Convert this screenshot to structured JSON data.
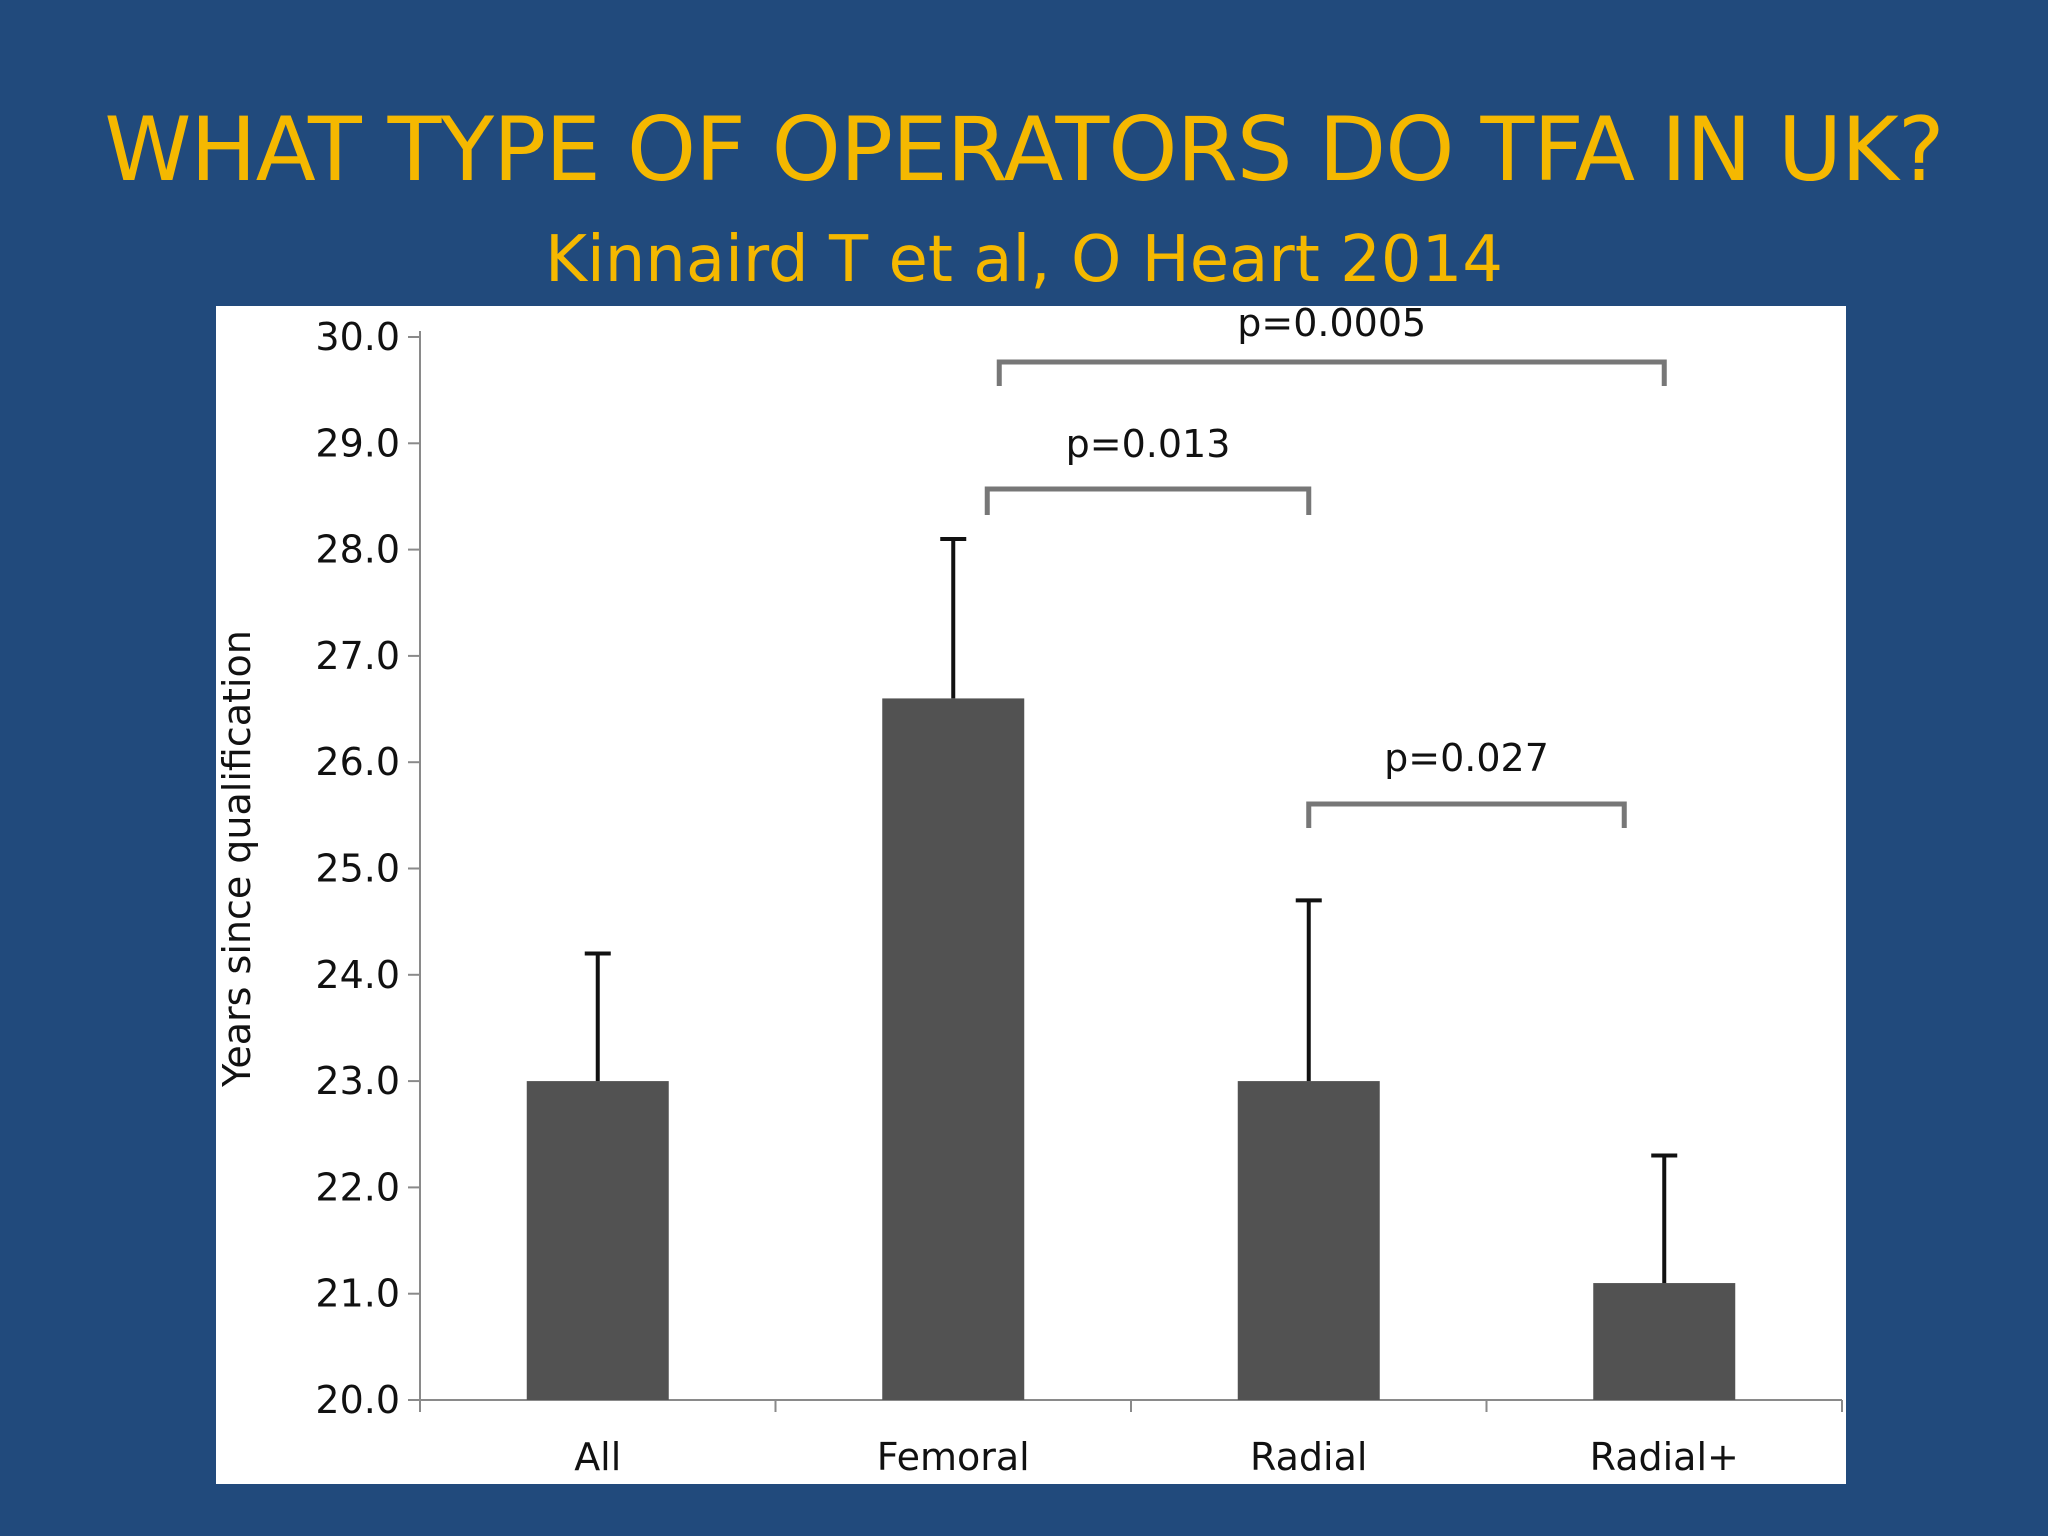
{
  "slide": {
    "title": "WHAT TYPE OF OPERATORS DO TFA IN UK?",
    "subtitle": "Kinnaird T et al, O Heart 2014"
  },
  "chart_data": {
    "type": "bar",
    "title": "",
    "xlabel": "",
    "ylabel": "Years since qualification",
    "categories": [
      "All",
      "Femoral",
      "Radial",
      "Radial+"
    ],
    "values": [
      23.0,
      26.6,
      23.0,
      21.1
    ],
    "error_upper": [
      24.2,
      28.1,
      24.7,
      22.3
    ],
    "ylim": [
      20.0,
      30.0
    ],
    "yticks": [
      "20.0",
      "21.0",
      "22.0",
      "23.0",
      "24.0",
      "25.0",
      "26.0",
      "27.0",
      "28.0",
      "29.0",
      "30.0"
    ],
    "bar_color": "#525252",
    "grid": false,
    "legend": "none",
    "significance": [
      {
        "label": "p=0.0005",
        "from": "Femoral",
        "to": "Radial+"
      },
      {
        "label": "p=0.013",
        "from": "Femoral",
        "to": "Radial"
      },
      {
        "label": "p=0.027",
        "from": "Radial",
        "to": "Radial+"
      }
    ]
  },
  "colors": {
    "background": "#214a7c",
    "accent": "#f5b800",
    "panel": "#ffffff",
    "bar": "#525252"
  }
}
